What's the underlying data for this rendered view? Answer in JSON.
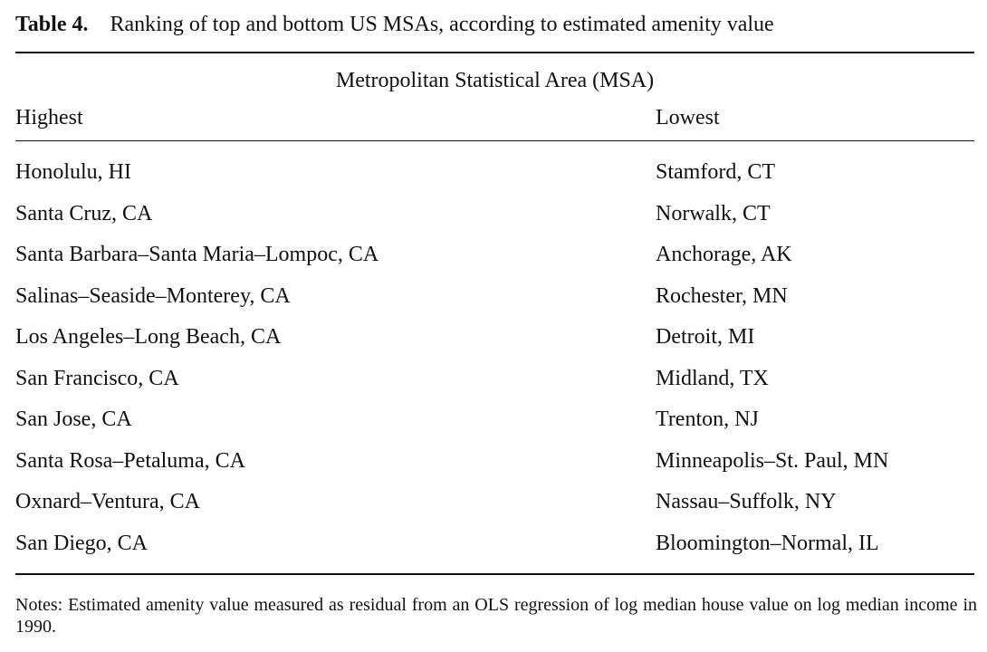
{
  "caption": {
    "label": "Table 4.",
    "title": "Ranking of top and bottom US MSAs, according to estimated amenity value"
  },
  "table": {
    "spanner": "Metropolitan Statistical Area (MSA)",
    "columns": [
      "Highest",
      "Lowest"
    ],
    "rows": [
      [
        "Honolulu, HI",
        "Stamford, CT"
      ],
      [
        "Santa Cruz, CA",
        "Norwalk, CT"
      ],
      [
        "Santa Barbara–Santa Maria–Lompoc, CA",
        "Anchorage, AK"
      ],
      [
        "Salinas–Seaside–Monterey, CA",
        "Rochester, MN"
      ],
      [
        "Los Angeles–Long Beach, CA",
        "Detroit, MI"
      ],
      [
        "San Francisco, CA",
        "Midland, TX"
      ],
      [
        "San Jose, CA",
        "Trenton, NJ"
      ],
      [
        "Santa Rosa–Petaluma, CA",
        "Minneapolis–St. Paul, MN"
      ],
      [
        "Oxnard–Ventura, CA",
        "Nassau–Suffolk, NY"
      ],
      [
        "San Diego, CA",
        "Bloomington–Normal, IL"
      ]
    ]
  },
  "notes": "Notes: Estimated amenity value measured as residual from an OLS regression of log median house value on log median income in 1990."
}
